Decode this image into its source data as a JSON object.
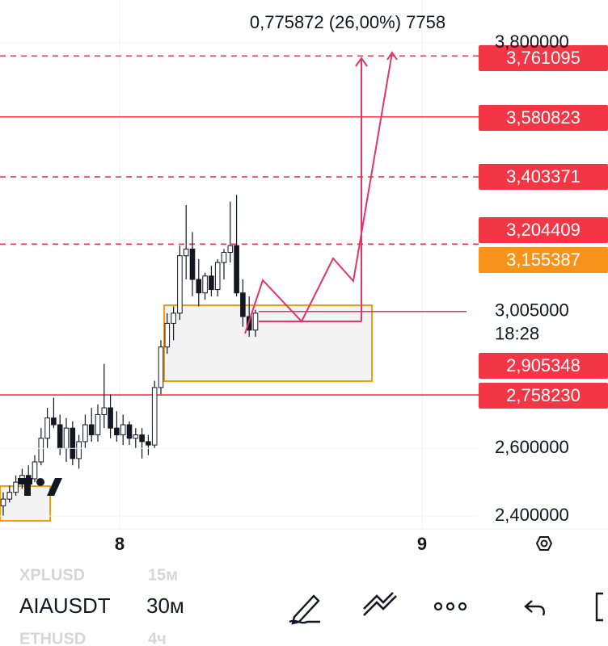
{
  "header": {
    "text": "0,775872 (26,00%) 7758"
  },
  "price_axis": [
    {
      "value": 3.8,
      "label": "3,800000"
    },
    {
      "value": 2.6,
      "label": "2,600000"
    },
    {
      "value": 2.4,
      "label": "2,400000"
    }
  ],
  "current_price": {
    "value": 3.005,
    "label": "3,005000",
    "timer": "18:28"
  },
  "levels": [
    {
      "value": 3.761095,
      "label": "3,761095",
      "line": "dashed",
      "color": "#f23645"
    },
    {
      "value": 3.580823,
      "label": "3,580823",
      "line": "solid",
      "color": "#f23645"
    },
    {
      "value": 3.403371,
      "label": "3,403371",
      "line": "dashed",
      "color": "#f23645"
    },
    {
      "value": 3.204409,
      "label": "3,204409",
      "line": "dashed",
      "color": "#f23645"
    },
    {
      "value": 3.155387,
      "label": "3,155387",
      "line": "none",
      "color": "#f7931a"
    },
    {
      "value": 2.905348,
      "label": "2,905348",
      "line": "none",
      "color": "#f23645"
    },
    {
      "value": 2.75823,
      "label": "2,758230",
      "line": "solid",
      "color": "#f23645"
    }
  ],
  "candles": [
    [
      2.43,
      2.47,
      2.4,
      2.45
    ],
    [
      2.45,
      2.49,
      2.44,
      2.47
    ],
    [
      2.47,
      2.52,
      2.46,
      2.5
    ],
    [
      2.5,
      2.54,
      2.48,
      2.52
    ],
    [
      2.52,
      2.55,
      2.5,
      2.51
    ],
    [
      2.51,
      2.58,
      2.5,
      2.56
    ],
    [
      2.56,
      2.66,
      2.55,
      2.63
    ],
    [
      2.63,
      2.72,
      2.6,
      2.69
    ],
    [
      2.69,
      2.75,
      2.66,
      2.67
    ],
    [
      2.67,
      2.7,
      2.58,
      2.6
    ],
    [
      2.6,
      2.69,
      2.56,
      2.66
    ],
    [
      2.66,
      2.68,
      2.55,
      2.57
    ],
    [
      2.57,
      2.64,
      2.54,
      2.62
    ],
    [
      2.62,
      2.7,
      2.6,
      2.67
    ],
    [
      2.67,
      2.72,
      2.62,
      2.64
    ],
    [
      2.64,
      2.73,
      2.62,
      2.7
    ],
    [
      2.7,
      2.85,
      2.66,
      2.72
    ],
    [
      2.72,
      2.76,
      2.63,
      2.66
    ],
    [
      2.66,
      2.71,
      2.62,
      2.64
    ],
    [
      2.64,
      2.7,
      2.61,
      2.67
    ],
    [
      2.67,
      2.68,
      2.61,
      2.63
    ],
    [
      2.63,
      2.66,
      2.6,
      2.64
    ],
    [
      2.64,
      2.66,
      2.57,
      2.62
    ],
    [
      2.62,
      2.64,
      2.58,
      2.61
    ],
    [
      2.61,
      2.8,
      2.6,
      2.78
    ],
    [
      2.78,
      2.92,
      2.76,
      2.9
    ],
    [
      2.9,
      3.0,
      2.88,
      2.97
    ],
    [
      2.97,
      3.02,
      2.92,
      3.0
    ],
    [
      3.0,
      3.2,
      2.98,
      3.17
    ],
    [
      3.17,
      3.32,
      3.1,
      3.19
    ],
    [
      3.19,
      3.24,
      3.05,
      3.1
    ],
    [
      3.1,
      3.16,
      3.02,
      3.06
    ],
    [
      3.06,
      3.12,
      3.04,
      3.11
    ],
    [
      3.11,
      3.14,
      3.05,
      3.07
    ],
    [
      3.07,
      3.16,
      3.05,
      3.15
    ],
    [
      3.15,
      3.19,
      3.1,
      3.18
    ],
    [
      3.18,
      3.33,
      3.15,
      3.2
    ],
    [
      3.2,
      3.35,
      3.05,
      3.06
    ],
    [
      3.06,
      3.1,
      2.96,
      2.99
    ],
    [
      2.99,
      3.05,
      2.93,
      2.95
    ],
    [
      2.95,
      3.01,
      2.93,
      3.0
    ]
  ],
  "time_axis": [
    "8",
    "9"
  ],
  "toolbar": {
    "symbols": [
      "XPLUSD",
      "AIAUSDT",
      "ETHUSD"
    ],
    "intervals": [
      "15м",
      "30м",
      "4ч"
    ]
  }
}
